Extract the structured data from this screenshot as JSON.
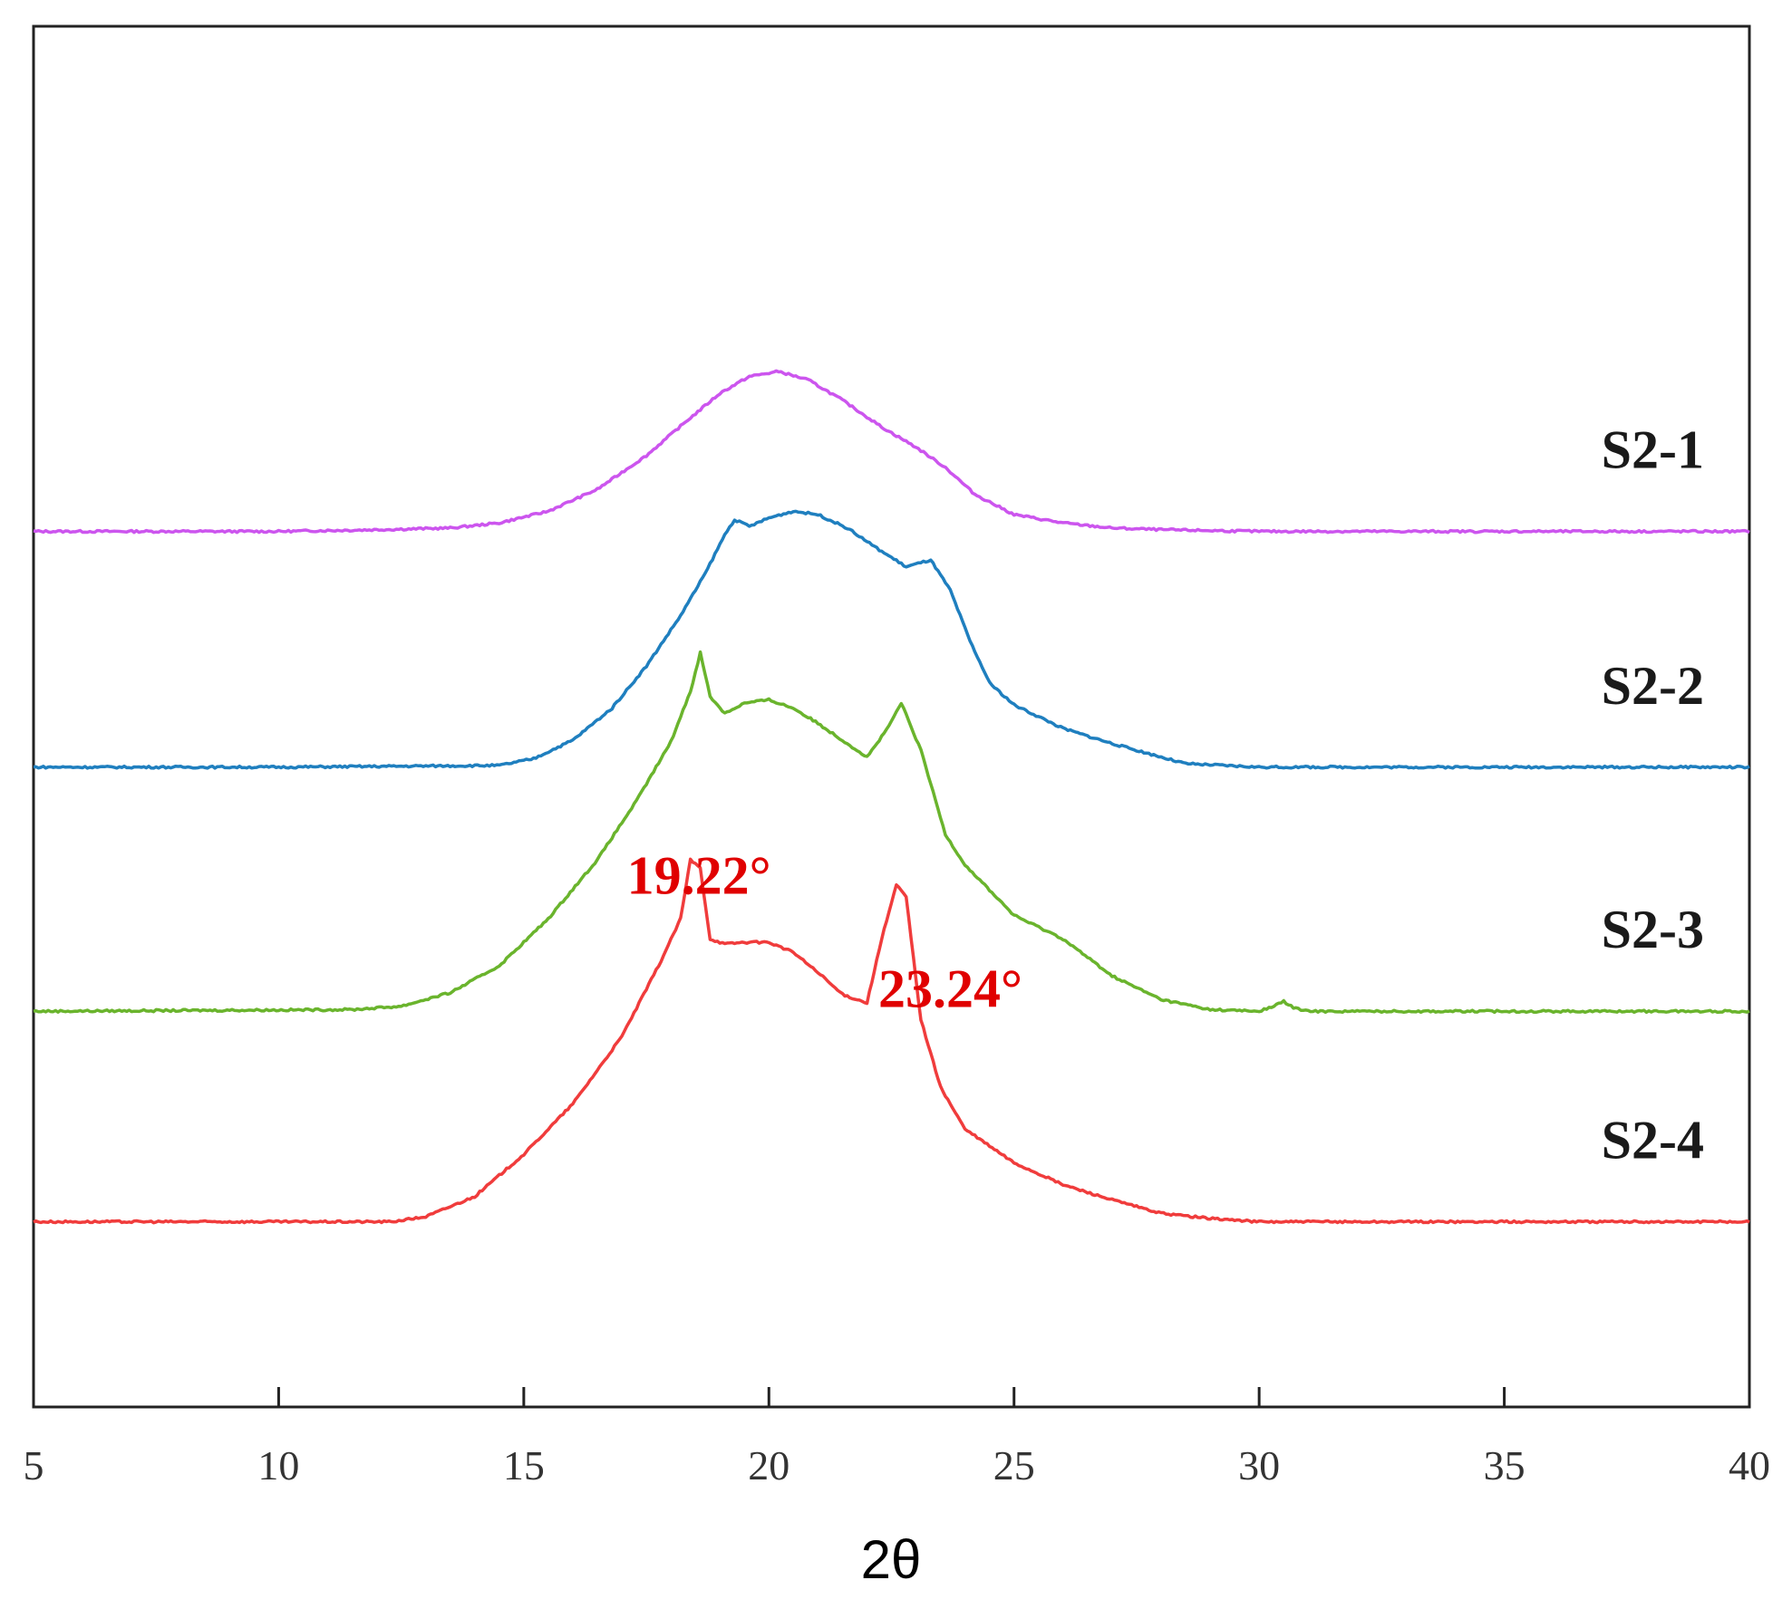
{
  "chart_data": {
    "type": "line",
    "xlabel": "2θ",
    "ylabel": "",
    "xlim": [
      5,
      40
    ],
    "x_ticks": [
      5,
      10,
      15,
      20,
      25,
      30,
      35,
      40
    ],
    "y_ticks": [],
    "grid": false,
    "legend": "series labels placed at right end of each curve",
    "stacked_offset": true,
    "series": [
      {
        "name": "S2-1",
        "color": "#cc55ee",
        "baseline": 4.0,
        "x": [
          5,
          10,
          12,
          13.5,
          14.5,
          15.5,
          16.5,
          17.5,
          18.3,
          19,
          19.6,
          20.2,
          20.8,
          21.5,
          22.3,
          23,
          23.6,
          24.2,
          25,
          26,
          27,
          28,
          30,
          35,
          40
        ],
        "y": [
          4.0,
          4.0,
          4.01,
          4.02,
          4.05,
          4.12,
          4.25,
          4.45,
          4.65,
          4.82,
          4.92,
          4.95,
          4.9,
          4.78,
          4.62,
          4.5,
          4.38,
          4.22,
          4.1,
          4.05,
          4.02,
          4.01,
          4.0,
          4.0,
          4.0
        ]
      },
      {
        "name": "S2-2",
        "color": "#1f7fbf",
        "baseline": 2.6,
        "x": [
          5,
          10,
          14.5,
          15.2,
          16,
          16.8,
          17.5,
          18.2,
          18.7,
          19.1,
          19.3,
          19.6,
          20,
          20.5,
          21,
          21.6,
          22.2,
          22.8,
          23.3,
          23.7,
          24.1,
          24.5,
          25,
          25.5,
          26,
          27,
          28.5,
          30,
          35,
          40
        ],
        "y": [
          2.6,
          2.6,
          2.61,
          2.65,
          2.76,
          2.95,
          3.2,
          3.5,
          3.75,
          3.98,
          4.07,
          4.03,
          4.08,
          4.12,
          4.1,
          4.02,
          3.9,
          3.79,
          3.83,
          3.65,
          3.35,
          3.1,
          2.97,
          2.9,
          2.83,
          2.74,
          2.62,
          2.6,
          2.6,
          2.6
        ]
      },
      {
        "name": "S2-3",
        "color": "#6ab42d",
        "baseline": 1.15,
        "x": [
          5,
          11.5,
          12.5,
          13.5,
          14.5,
          15.5,
          16.5,
          17.3,
          18,
          18.4,
          18.6,
          18.8,
          19.1,
          19.5,
          20,
          20.5,
          21,
          21.5,
          22,
          22.4,
          22.7,
          23.1,
          23.6,
          24,
          25,
          26,
          27,
          28,
          29,
          30,
          30.3,
          30.5,
          30.7,
          31,
          35,
          40
        ],
        "y": [
          1.15,
          1.16,
          1.18,
          1.26,
          1.42,
          1.7,
          2.05,
          2.4,
          2.75,
          3.05,
          3.28,
          3.02,
          2.92,
          2.98,
          3.0,
          2.95,
          2.86,
          2.76,
          2.66,
          2.82,
          2.98,
          2.7,
          2.2,
          2.02,
          1.72,
          1.58,
          1.36,
          1.22,
          1.16,
          1.15,
          1.18,
          1.21,
          1.17,
          1.15,
          1.15,
          1.15
        ]
      },
      {
        "name": "S2-4",
        "color": "#f03c3c",
        "baseline": -0.1,
        "x": [
          5,
          12.3,
          13,
          14,
          15,
          16,
          17,
          17.8,
          18.2,
          18.4,
          18.6,
          18.8,
          19.1,
          19.5,
          20,
          20.5,
          21,
          21.5,
          22,
          22.3,
          22.6,
          22.8,
          23.1,
          23.5,
          24,
          25,
          26,
          27,
          28,
          29,
          30,
          35,
          40
        ],
        "y": [
          -0.1,
          -0.1,
          -0.07,
          0.05,
          0.3,
          0.6,
          1.0,
          1.45,
          1.7,
          2.05,
          2.0,
          1.58,
          1.55,
          1.56,
          1.56,
          1.5,
          1.38,
          1.25,
          1.2,
          1.58,
          1.9,
          1.83,
          1.1,
          0.7,
          0.45,
          0.25,
          0.12,
          0.03,
          -0.05,
          -0.08,
          -0.1,
          -0.1,
          -0.1
        ]
      }
    ],
    "annotations": [
      {
        "text": "19.22°",
        "x": 19.22
      },
      {
        "text": "23.24°",
        "x": 23.24
      }
    ],
    "annotation_color": "#e00000",
    "ylim": [
      -1.2,
      7.0
    ]
  }
}
